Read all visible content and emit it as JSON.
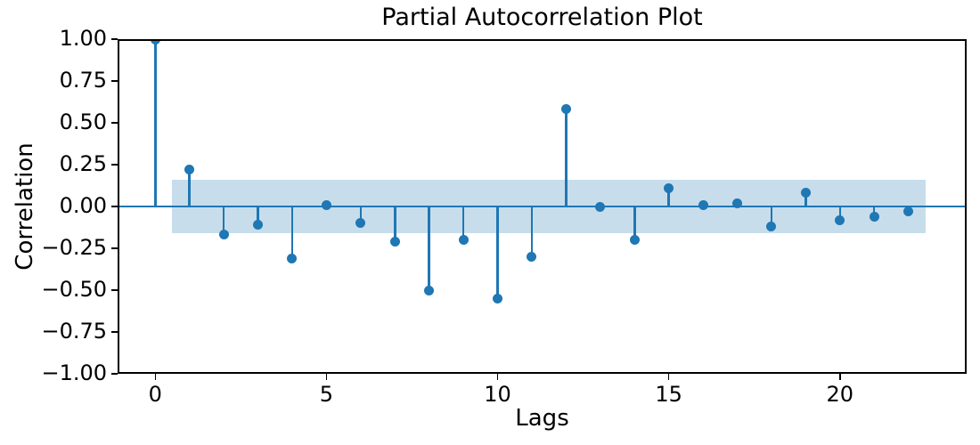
{
  "chart_data": {
    "type": "stem",
    "title": "Partial Autocorrelation Plot",
    "xlabel": "Lags",
    "ylabel": "Correlation",
    "x": [
      0,
      1,
      2,
      3,
      4,
      5,
      6,
      7,
      8,
      9,
      10,
      11,
      12,
      13,
      14,
      15,
      16,
      17,
      18,
      19,
      20,
      21,
      22
    ],
    "values": [
      1.0,
      0.22,
      -0.17,
      -0.11,
      -0.31,
      0.01,
      -0.1,
      -0.21,
      -0.5,
      -0.2,
      -0.55,
      -0.3,
      0.58,
      0.0,
      -0.2,
      0.11,
      0.01,
      0.02,
      -0.12,
      0.08,
      -0.08,
      -0.06,
      -0.03
    ],
    "confidence_band": {
      "low": -0.16,
      "high": 0.16,
      "x_start": 0.5,
      "x_end": 22.5
    },
    "xlim": [
      -1.1,
      23.7
    ],
    "ylim": [
      -1.0,
      1.0
    ],
    "xticks": [
      0,
      5,
      10,
      15,
      20
    ],
    "xtick_labels": [
      "0",
      "5",
      "10",
      "15",
      "20"
    ],
    "yticks": [
      1.0,
      0.75,
      0.5,
      0.25,
      0.0,
      -0.25,
      -0.5,
      -0.75,
      -1.0
    ],
    "ytick_labels": [
      "1.00",
      "0.75",
      "0.50",
      "0.25",
      "0.00",
      "−0.25",
      "−0.50",
      "−0.75",
      "−1.00"
    ],
    "grid": false,
    "colors": {
      "stem": "#1f77b4",
      "band": "#c7ddec",
      "axis": "#000000",
      "background": "#ffffff"
    }
  }
}
